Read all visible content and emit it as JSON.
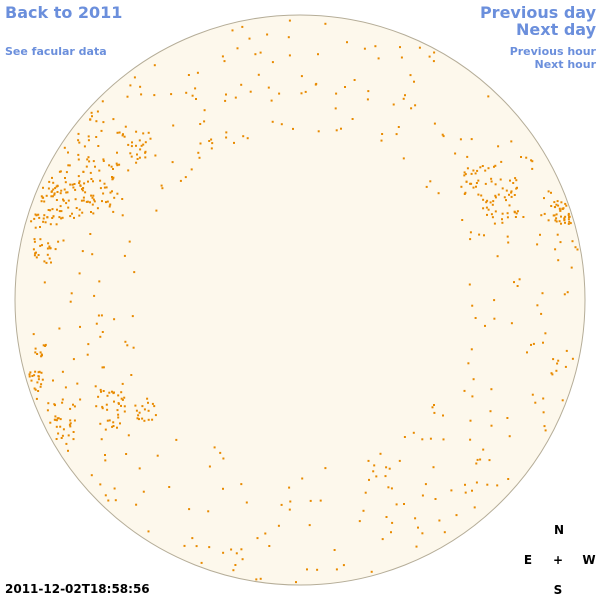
{
  "nav": {
    "back_year": "Back to 2011",
    "facular_data": "See facular data",
    "previous_day": "Previous day",
    "next_day": "Next day",
    "previous_hour": "Previous hour",
    "next_hour": "Next hour"
  },
  "timestamp": "2011-12-02T18:58:56",
  "compass": {
    "north": "N",
    "east": "E",
    "center": "+",
    "west": "W",
    "south": "S"
  }
}
